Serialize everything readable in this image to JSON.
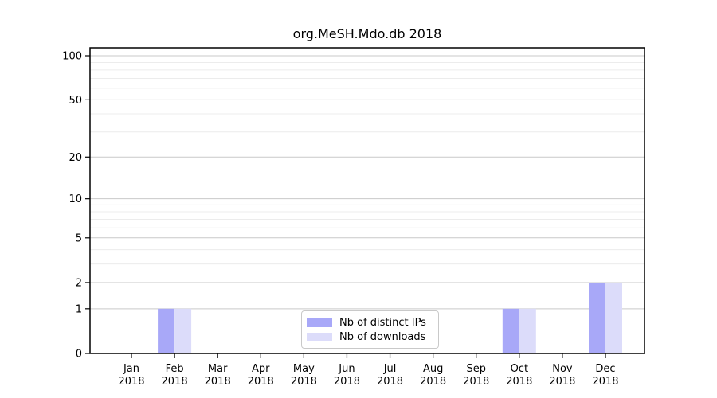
{
  "figure": {
    "background": "#ffffff",
    "border_color": "#000000",
    "major_grid_color": "#c9c9c9",
    "minor_grid_color": "#ececec"
  },
  "chart_data": {
    "type": "bar",
    "title": "org.MeSH.Mdo.db 2018",
    "categories": [
      "Jan",
      "Feb",
      "Mar",
      "Apr",
      "May",
      "Jun",
      "Jul",
      "Aug",
      "Sep",
      "Oct",
      "Nov",
      "Dec"
    ],
    "category_year": "2018",
    "series": [
      {
        "name": "Nb of distinct IPs",
        "color": "#a8a8f8",
        "values": [
          0,
          1,
          0,
          0,
          0,
          0,
          0,
          0,
          0,
          1,
          0,
          2
        ]
      },
      {
        "name": "Nb of downloads",
        "color": "#dcdcfa",
        "values": [
          0,
          1,
          0,
          0,
          0,
          0,
          0,
          0,
          0,
          1,
          0,
          2
        ]
      }
    ],
    "y_axis": {
      "scale": "log1p",
      "ticks": [
        0,
        1,
        2,
        5,
        10,
        20,
        50,
        100
      ],
      "minor_gridlines": [
        3,
        4,
        6,
        7,
        8,
        9,
        30,
        40,
        60,
        70,
        80,
        90
      ],
      "ylim": [
        0,
        100
      ]
    },
    "x_axis": {
      "label_line2": "2018"
    },
    "legend": {
      "position": "inside-bottom-center",
      "entries": [
        "Nb of distinct IPs",
        "Nb of downloads"
      ]
    },
    "grid": true
  }
}
